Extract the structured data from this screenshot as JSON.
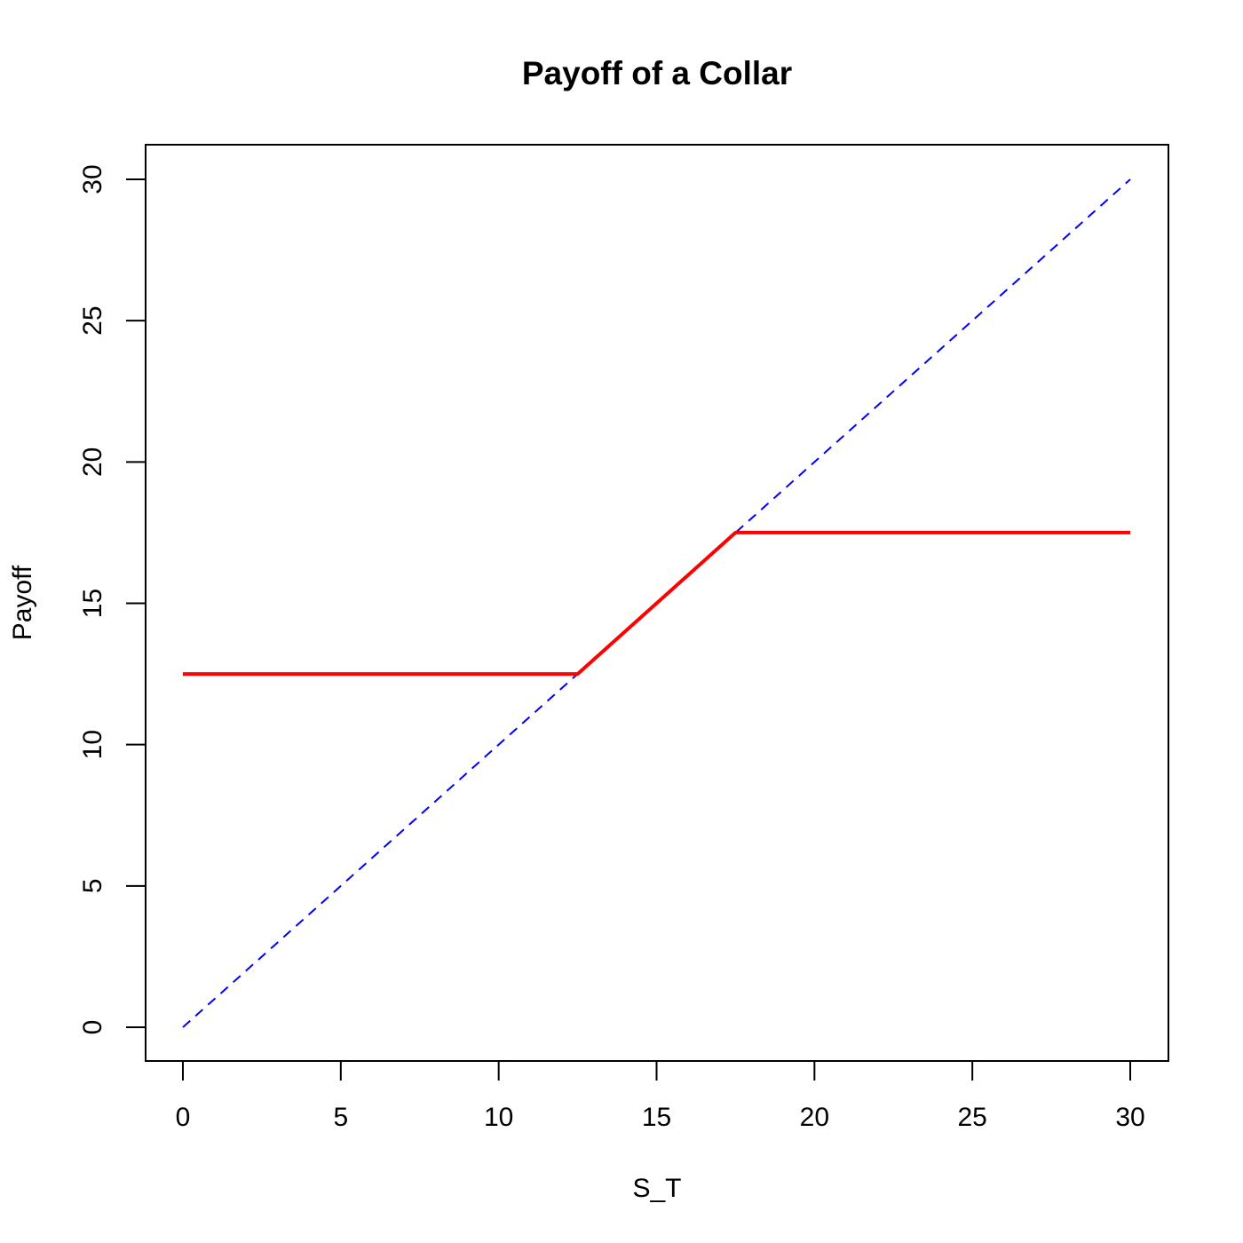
{
  "chart_data": {
    "type": "line",
    "title": "Payoff of a Collar",
    "xlabel": "S_T",
    "ylabel": "Payoff",
    "xlim": [
      0,
      30
    ],
    "ylim": [
      0,
      30
    ],
    "x_ticks": [
      0,
      5,
      10,
      15,
      20,
      25,
      30
    ],
    "y_ticks": [
      0,
      5,
      10,
      15,
      20,
      25,
      30
    ],
    "grid": false,
    "series": [
      {
        "style": "solid",
        "color": "#ff0000",
        "points": [
          [
            0,
            12.5
          ],
          [
            12.5,
            12.5
          ],
          [
            17.5,
            17.5
          ],
          [
            30,
            17.5
          ]
        ]
      },
      {
        "style": "dashed",
        "color": "#0000ff",
        "points": [
          [
            0,
            0
          ],
          [
            30,
            30
          ]
        ]
      }
    ]
  }
}
